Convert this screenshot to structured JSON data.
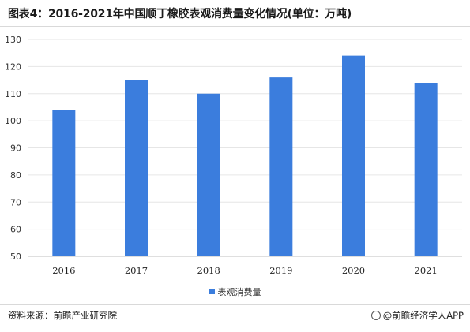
{
  "title": "图表4：2016-2021年中国顺丁橡胶表观消费量变化情况(单位：万吨)",
  "source": "资料来源：前瞻产业研究院",
  "brand": "@前瞻经济学人APP",
  "chart_data": {
    "type": "bar",
    "categories": [
      "2016",
      "2017",
      "2018",
      "2019",
      "2020",
      "2021"
    ],
    "series": [
      {
        "name": "表观消费量",
        "values": [
          104,
          115,
          110,
          116,
          124,
          114
        ],
        "color": "#3b7ddd"
      }
    ],
    "ylim": [
      50,
      130
    ],
    "yticks": [
      50,
      60,
      70,
      80,
      90,
      100,
      110,
      120,
      130
    ],
    "grid": true,
    "legend_position": "bottom"
  }
}
